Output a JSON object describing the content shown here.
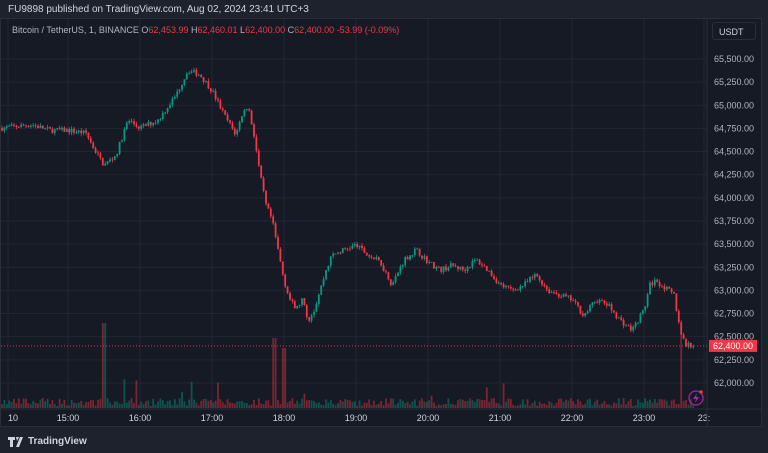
{
  "header": {
    "published": "FU9898 published on TradingView.com, Aug 02, 2024 23:41 UTC+3"
  },
  "legend": {
    "symbol": "Bitcoin / TetherUS, 1, BINANCE",
    "o_label": "O",
    "o": "62,453.99",
    "h_label": "H",
    "h": "62,460.01",
    "l_label": "L",
    "l": "62,400.00",
    "c_label": "C",
    "c": "62,400.00",
    "change": "-53.99 (-0.09%)"
  },
  "currency_button": "USDT",
  "footer": {
    "brand": "TradingView"
  },
  "colors": {
    "up": "#089981",
    "down": "#f23645",
    "background": "#161a25",
    "grid": "#232632"
  },
  "chart_data": {
    "type": "candlestick",
    "interval": "1",
    "ylim": [
      61800,
      65700
    ],
    "y_ticks": [
      "65,500.00",
      "65,250.00",
      "65,000.00",
      "64,750.00",
      "64,500.00",
      "64,250.00",
      "64,000.00",
      "63,750.00",
      "63,500.00",
      "63,250.00",
      "63,000.00",
      "62,750.00",
      "62,500.00",
      "62,250.00",
      "62,000.00"
    ],
    "y_tick_values": [
      65500,
      65250,
      65000,
      64750,
      64500,
      64250,
      64000,
      63750,
      63500,
      63250,
      63000,
      62750,
      62500,
      62250,
      62000
    ],
    "x_ticks": [
      "10",
      "15:00",
      "16:00",
      "17:00",
      "18:00",
      "19:00",
      "20:00",
      "21:00",
      "22:00",
      "23:00",
      "23:"
    ],
    "x_tick_times": [
      "14:10",
      "15:00",
      "16:00",
      "17:00",
      "18:00",
      "19:00",
      "20:00",
      "21:00",
      "22:00",
      "23:00",
      "23:50"
    ],
    "last_price": "62,400.00",
    "last_price_value": 62400,
    "close_series": [
      [
        "14:05",
        64755
      ],
      [
        "14:30",
        64790
      ],
      [
        "14:45",
        64730
      ],
      [
        "15:00",
        64730
      ],
      [
        "15:15",
        64700
      ],
      [
        "15:20",
        64570
      ],
      [
        "15:30",
        64350
      ],
      [
        "15:40",
        64460
      ],
      [
        "15:50",
        64840
      ],
      [
        "16:00",
        64755
      ],
      [
        "16:15",
        64840
      ],
      [
        "16:30",
        65110
      ],
      [
        "16:40",
        65380
      ],
      [
        "16:50",
        65330
      ],
      [
        "17:00",
        65160
      ],
      [
        "17:10",
        64900
      ],
      [
        "17:20",
        64680
      ],
      [
        "17:25",
        64900
      ],
      [
        "17:30",
        65000
      ],
      [
        "17:35",
        64680
      ],
      [
        "17:40",
        64250
      ],
      [
        "17:45",
        63920
      ],
      [
        "17:50",
        63760
      ],
      [
        "17:55",
        63440
      ],
      [
        "18:00",
        63110
      ],
      [
        "18:05",
        62900
      ],
      [
        "18:10",
        62790
      ],
      [
        "18:15",
        62900
      ],
      [
        "18:20",
        62680
      ],
      [
        "18:25",
        62790
      ],
      [
        "18:30",
        63000
      ],
      [
        "18:35",
        63220
      ],
      [
        "18:40",
        63380
      ],
      [
        "18:50",
        63440
      ],
      [
        "19:00",
        63490
      ],
      [
        "19:10",
        63380
      ],
      [
        "19:20",
        63310
      ],
      [
        "19:30",
        63060
      ],
      [
        "19:40",
        63330
      ],
      [
        "19:50",
        63440
      ],
      [
        "20:00",
        63310
      ],
      [
        "20:10",
        63220
      ],
      [
        "20:20",
        63270
      ],
      [
        "20:30",
        63220
      ],
      [
        "20:40",
        63330
      ],
      [
        "20:50",
        63220
      ],
      [
        "21:00",
        63060
      ],
      [
        "21:10",
        63000
      ],
      [
        "21:20",
        63060
      ],
      [
        "21:30",
        63170
      ],
      [
        "21:40",
        63000
      ],
      [
        "21:50",
        62950
      ],
      [
        "22:00",
        62900
      ],
      [
        "22:10",
        62730
      ],
      [
        "22:20",
        62900
      ],
      [
        "22:30",
        62840
      ],
      [
        "22:40",
        62680
      ],
      [
        "22:50",
        62570
      ],
      [
        "23:00",
        62790
      ],
      [
        "23:05",
        63060
      ],
      [
        "23:10",
        63110
      ],
      [
        "23:20",
        63000
      ],
      [
        "23:25",
        62950
      ],
      [
        "23:30",
        62570
      ],
      [
        "23:35",
        62410
      ],
      [
        "23:41",
        62400
      ]
    ]
  }
}
